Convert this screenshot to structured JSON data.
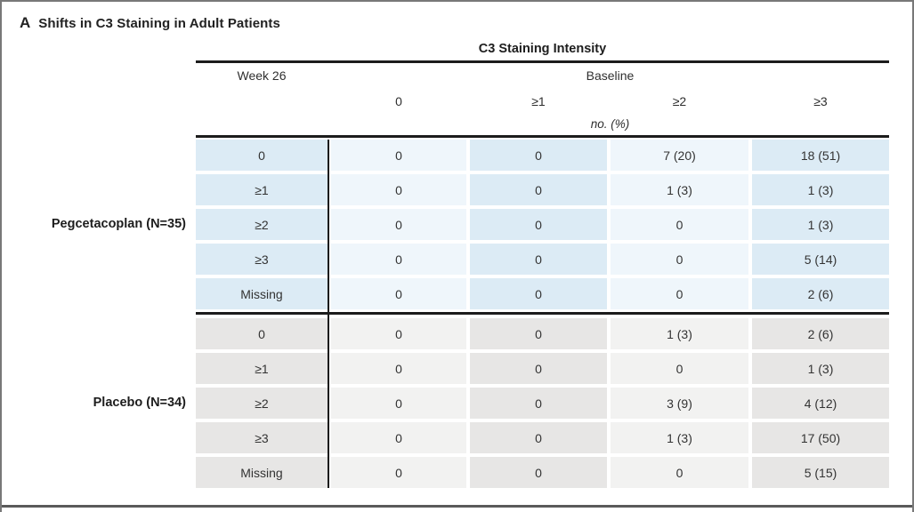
{
  "panel": {
    "letter": "A",
    "title": "Shifts in C3 Staining in Adult Patients"
  },
  "table": {
    "main_header": "C3 Staining Intensity",
    "row_axis_label": "Week 26",
    "col_axis_label": "Baseline",
    "unit_label": "no. (%)",
    "column_headers": [
      "0",
      "≥1",
      "≥2",
      "≥3"
    ],
    "sections": [
      {
        "group_label": "Pegcetacoplan (N=35)",
        "theme": "blue",
        "rows": [
          {
            "label": "0",
            "values": [
              "0",
              "0",
              "7 (20)",
              "18 (51)"
            ]
          },
          {
            "label": "≥1",
            "values": [
              "0",
              "0",
              "1 (3)",
              "1 (3)"
            ]
          },
          {
            "label": "≥2",
            "values": [
              "0",
              "0",
              "0",
              "1 (3)"
            ]
          },
          {
            "label": "≥3",
            "values": [
              "0",
              "0",
              "0",
              "5 (14)"
            ]
          },
          {
            "label": "Missing",
            "values": [
              "0",
              "0",
              "0",
              "2 (6)"
            ]
          }
        ]
      },
      {
        "group_label": "Placebo (N=34)",
        "theme": "gray",
        "rows": [
          {
            "label": "0",
            "values": [
              "0",
              "0",
              "1 (3)",
              "2 (6)"
            ]
          },
          {
            "label": "≥1",
            "values": [
              "0",
              "0",
              "0",
              "1 (3)"
            ]
          },
          {
            "label": "≥2",
            "values": [
              "0",
              "0",
              "3 (9)",
              "4 (12)"
            ]
          },
          {
            "label": "≥3",
            "values": [
              "0",
              "0",
              "1 (3)",
              "17 (50)"
            ]
          },
          {
            "label": "Missing",
            "values": [
              "0",
              "0",
              "0",
              "5 (15)"
            ]
          }
        ]
      }
    ],
    "colors": {
      "blue_dark": "#dcebf5",
      "blue_light": "#eff6fb",
      "gray_dark": "#e7e6e5",
      "gray_light": "#f2f2f1",
      "rule": "#1c1c1c"
    }
  }
}
